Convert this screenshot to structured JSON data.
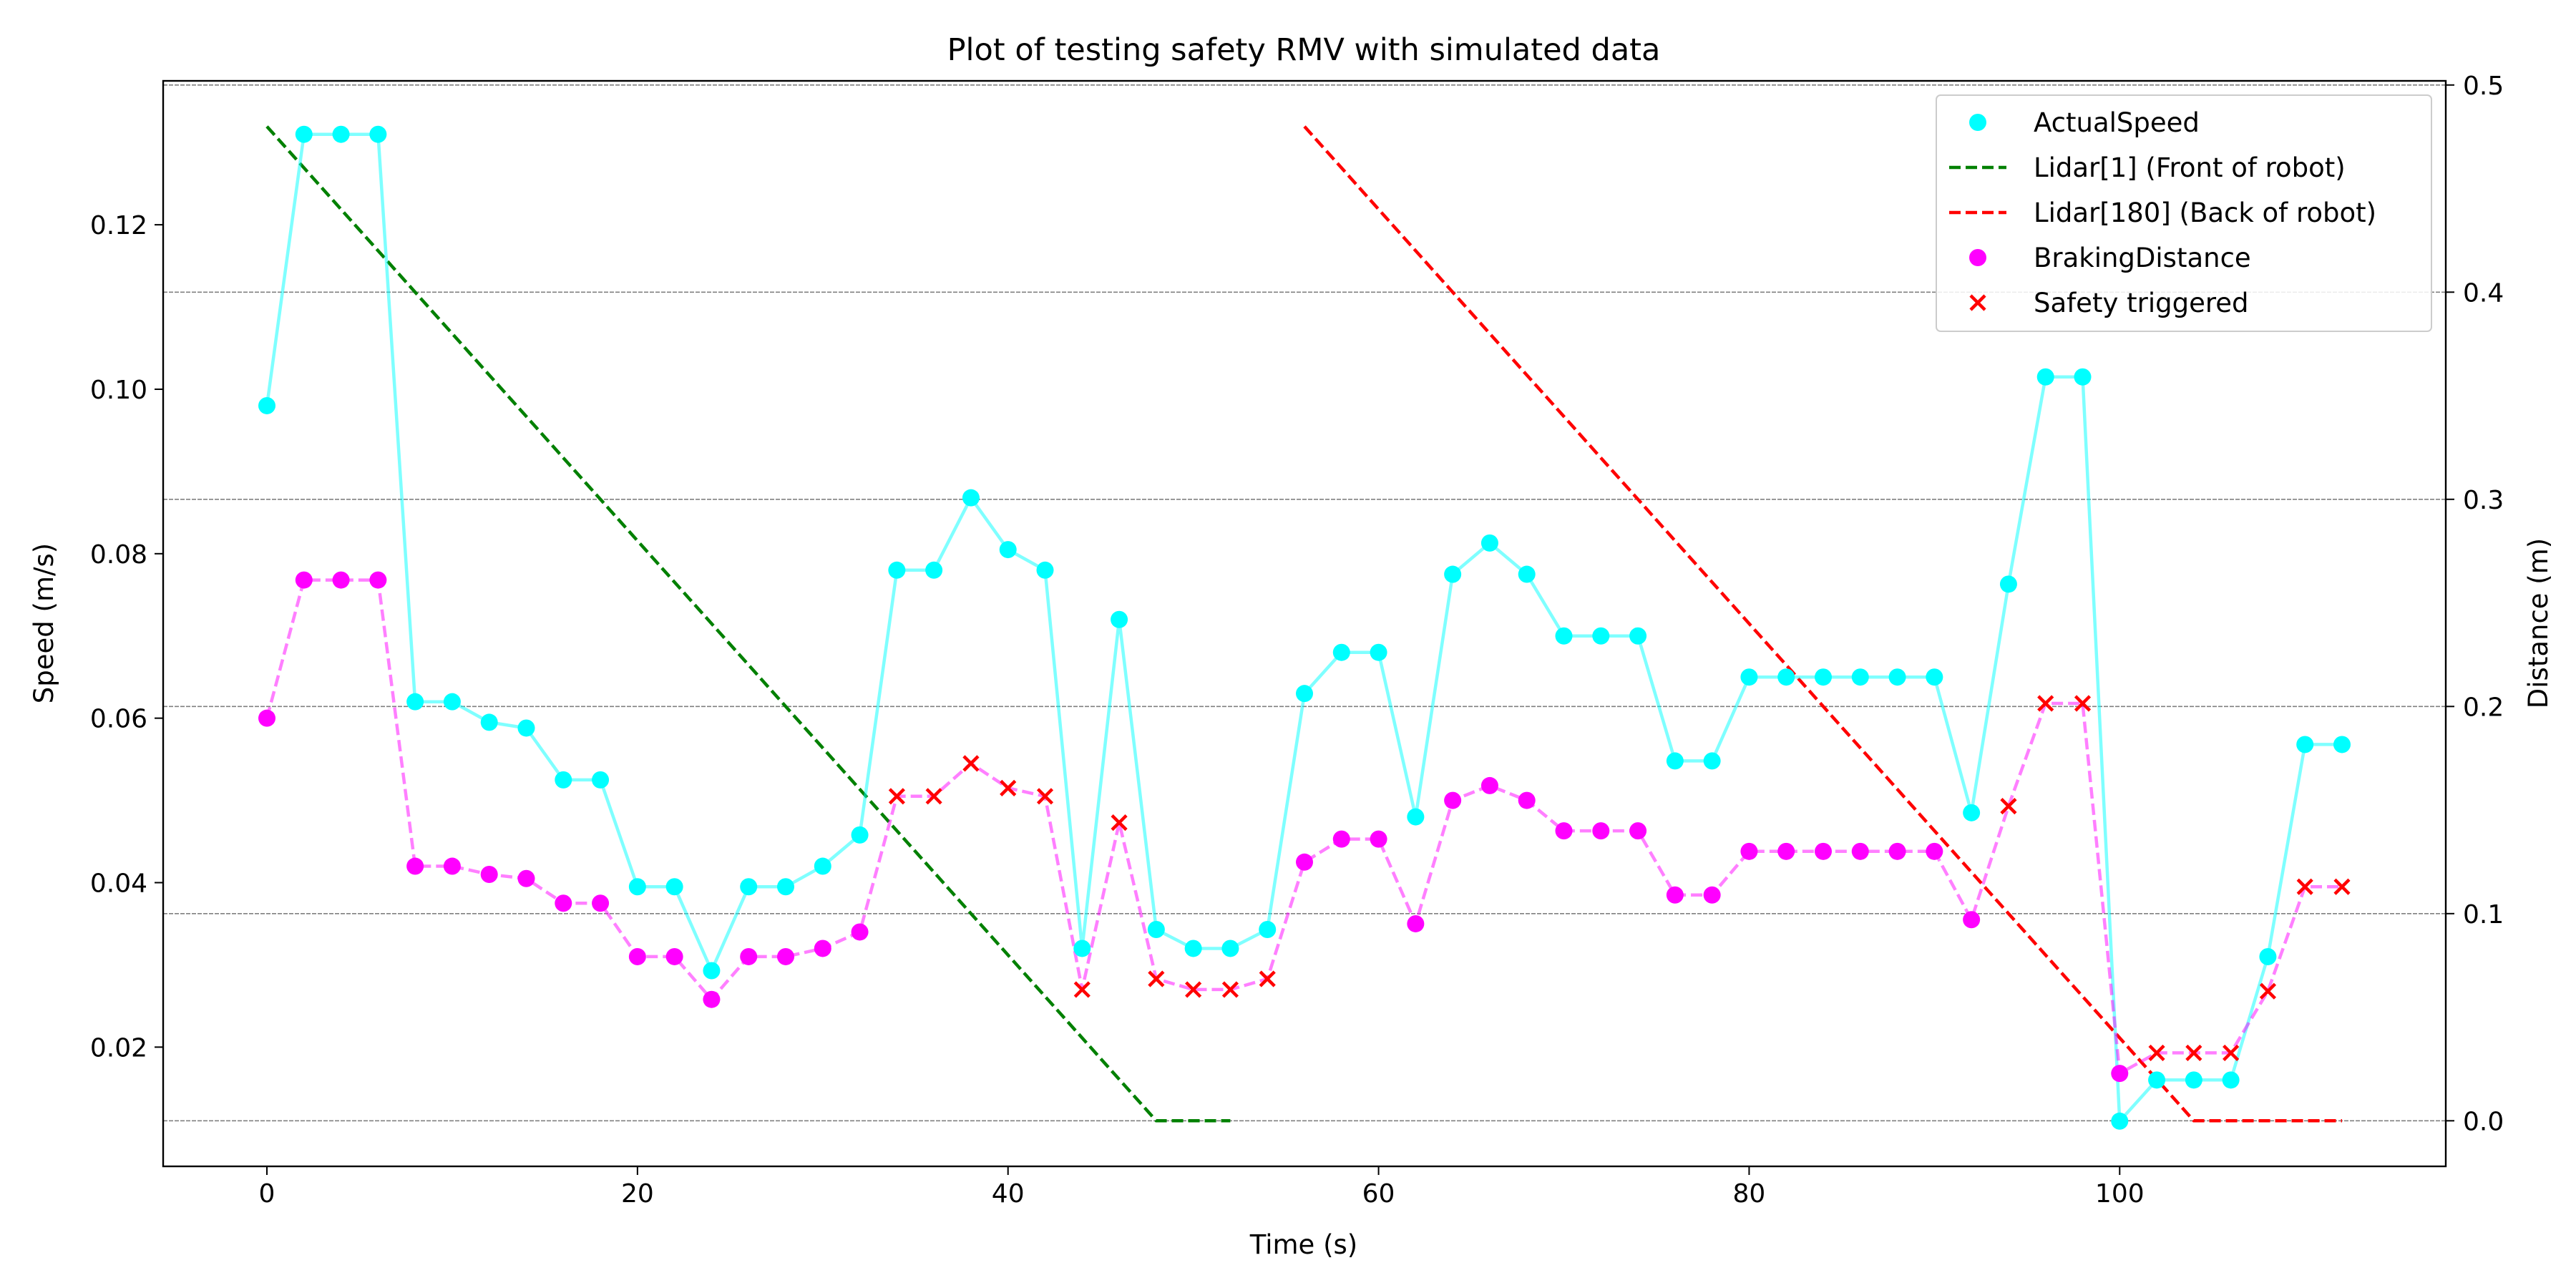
{
  "chart_data": {
    "type": "line",
    "title": "Plot of testing safety RMV with simulated data",
    "xlabel": "Time (s)",
    "ylabel": "Speed (m/s)",
    "y2label": "Distance (m)",
    "xlim": [
      -5.6,
      117.6
    ],
    "ylim": [
      0.0055,
      0.1375
    ],
    "y2lim": [
      -0.022,
      0.502
    ],
    "xticks": [
      0,
      20,
      40,
      60,
      80,
      100
    ],
    "yticks": [
      0.02,
      0.04,
      0.06,
      0.08,
      0.1,
      0.12
    ],
    "ytick_labels": [
      "0.02",
      "0.04",
      "0.06",
      "0.08",
      "0.10",
      "0.12"
    ],
    "y2ticks": [
      0.0,
      0.1,
      0.2,
      0.3,
      0.4,
      0.5
    ],
    "y2tick_labels": [
      "0.0",
      "0.1",
      "0.2",
      "0.3",
      "0.4",
      "0.5"
    ],
    "grid": "horizontal dashed at right-axis ticks",
    "legend_position": "top-right",
    "legend": [
      "ActualSpeed",
      "Lidar[1] (Front of robot)",
      "Lidar[180] (Back of robot)",
      "BrakingDistance",
      "Safety triggered"
    ],
    "colors": {
      "actual_speed": "#00ffff",
      "braking": "#ff00ff",
      "lidar_front": "#008000",
      "lidar_back": "#ff0000",
      "safety": "#ff0000",
      "grid": "#808080"
    },
    "x": [
      0,
      2,
      4,
      6,
      8,
      10,
      12,
      14,
      16,
      18,
      20,
      22,
      24,
      26,
      28,
      30,
      32,
      34,
      36,
      38,
      40,
      42,
      44,
      46,
      48,
      50,
      52,
      54,
      56,
      58,
      60,
      62,
      64,
      66,
      68,
      70,
      72,
      74,
      76,
      78,
      80,
      82,
      84,
      86,
      88,
      90,
      92,
      94,
      96,
      98,
      100,
      102,
      104,
      106,
      108,
      110,
      112
    ],
    "actual_speed": [
      0.098,
      0.131,
      0.131,
      0.131,
      0.062,
      0.062,
      0.0595,
      0.0588,
      0.0525,
      0.0525,
      0.0395,
      0.0395,
      0.0293,
      0.0395,
      0.0395,
      0.042,
      0.0458,
      0.078,
      0.078,
      0.0868,
      0.0805,
      0.078,
      0.032,
      0.072,
      0.0343,
      0.032,
      0.032,
      0.0343,
      0.063,
      0.068,
      0.068,
      0.048,
      0.0775,
      0.0813,
      0.0775,
      0.07,
      0.07,
      0.07,
      0.0548,
      0.0548,
      0.065,
      0.065,
      0.065,
      0.065,
      0.065,
      0.065,
      0.0485,
      0.0763,
      0.1015,
      0.1015,
      0.011,
      0.016,
      0.016,
      0.016,
      0.031,
      0.0568,
      0.0568
    ],
    "braking_distance": [
      0.06,
      0.0768,
      0.0768,
      0.0768,
      0.042,
      0.042,
      0.041,
      0.0405,
      0.0375,
      0.0375,
      0.031,
      0.031,
      0.0258,
      0.031,
      0.031,
      0.032,
      0.034,
      0.0505,
      0.0505,
      0.0545,
      0.0515,
      0.0505,
      0.027,
      0.0473,
      0.0283,
      0.027,
      0.027,
      0.0283,
      0.0425,
      0.0453,
      0.0453,
      0.035,
      0.05,
      0.0518,
      0.05,
      0.0463,
      0.0463,
      0.0463,
      0.0385,
      0.0385,
      0.0438,
      0.0438,
      0.0438,
      0.0438,
      0.0438,
      0.0438,
      0.0355,
      0.0493,
      0.0618,
      0.0618,
      0.0168,
      0.0193,
      0.0193,
      0.0193,
      0.0268,
      0.0395,
      0.0395
    ],
    "safety_triggered": [
      false,
      false,
      false,
      false,
      false,
      false,
      false,
      false,
      false,
      false,
      false,
      false,
      false,
      false,
      false,
      false,
      false,
      true,
      true,
      true,
      true,
      true,
      true,
      true,
      true,
      true,
      true,
      true,
      false,
      false,
      false,
      false,
      false,
      false,
      false,
      false,
      false,
      false,
      false,
      false,
      false,
      false,
      false,
      false,
      false,
      false,
      false,
      true,
      true,
      true,
      false,
      true,
      true,
      true,
      true,
      true,
      true
    ],
    "lidar_front": {
      "x": [
        0,
        48,
        50,
        52
      ],
      "y": [
        0.48,
        0.0,
        0.0,
        0.0
      ]
    },
    "lidar_back": {
      "x": [
        56,
        104,
        106,
        112
      ],
      "y": [
        0.48,
        0.0,
        0.0,
        0.0
      ]
    }
  }
}
